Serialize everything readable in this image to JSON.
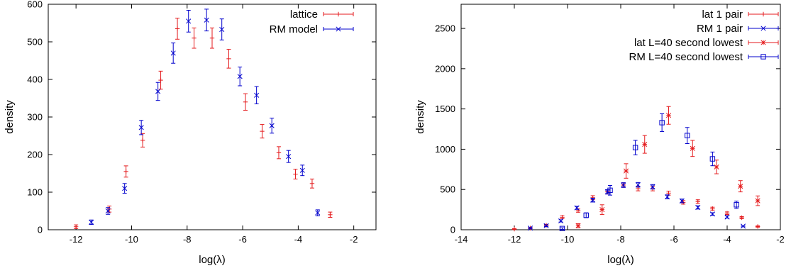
{
  "chart_data": [
    {
      "type": "scatter",
      "xlabel": "log(λ)",
      "ylabel": "density",
      "xlim": [
        -13,
        -1.2
      ],
      "ylim": [
        0,
        600
      ],
      "xticks": [
        -12,
        -10,
        -8,
        -6,
        -4,
        -2
      ],
      "xtick_labels": [
        "-12",
        "-10",
        "-8",
        "-6",
        "-4",
        "-2"
      ],
      "yticks": [
        0,
        100,
        200,
        300,
        400,
        500,
        600
      ],
      "ytick_labels": [
        "0",
        "100",
        "200",
        "300",
        "400",
        "500",
        "600"
      ],
      "grid": false,
      "legend_position": "top-right",
      "series": [
        {
          "name": "lattice",
          "color": "#e41a1c",
          "marker": "plus",
          "x": [
            -12.0,
            -10.8,
            -10.2,
            -9.6,
            -8.95,
            -8.35,
            -7.75,
            -7.1,
            -6.5,
            -5.9,
            -5.3,
            -4.7,
            -4.1,
            -3.5,
            -2.85
          ],
          "y": [
            8,
            55,
            155,
            238,
            398,
            535,
            510,
            510,
            455,
            340,
            262,
            205,
            148,
            123,
            40
          ],
          "err": [
            5,
            8,
            15,
            18,
            24,
            28,
            27,
            27,
            25,
            22,
            18,
            16,
            13,
            12,
            7
          ]
        },
        {
          "name": "RM model",
          "color": "#0000cc",
          "marker": "cross",
          "x": [
            -11.45,
            -10.85,
            -10.25,
            -9.65,
            -9.05,
            -8.5,
            -7.95,
            -7.3,
            -6.75,
            -6.1,
            -5.5,
            -4.95,
            -4.35,
            -3.85,
            -3.3
          ],
          "y": [
            20,
            50,
            110,
            272,
            368,
            470,
            555,
            558,
            533,
            408,
            358,
            277,
            195,
            158,
            45
          ],
          "err": [
            6,
            9,
            13,
            19,
            24,
            27,
            29,
            29,
            28,
            25,
            23,
            20,
            16,
            14,
            8
          ]
        }
      ]
    },
    {
      "type": "scatter",
      "xlabel": "log(λ)",
      "ylabel": "density",
      "xlim": [
        -14,
        -2
      ],
      "ylim": [
        0,
        2800
      ],
      "xticks": [
        -14,
        -12,
        -10,
        -8,
        -6,
        -4,
        -2
      ],
      "xtick_labels": [
        "-14",
        "-12",
        "-10",
        "-8",
        "-6",
        "-4",
        "-2"
      ],
      "yticks": [
        0,
        500,
        1000,
        1500,
        2000,
        2500
      ],
      "ytick_labels": [
        "0",
        "500",
        "1000",
        "1500",
        "2000",
        "2500"
      ],
      "grid": false,
      "legend_position": "top-right",
      "series": [
        {
          "name": "lat 1 pair",
          "color": "#e41a1c",
          "marker": "plus",
          "x": [
            -12.0,
            -11.4,
            -10.8,
            -10.2,
            -9.6,
            -9.05,
            -8.5,
            -7.9,
            -7.35,
            -6.8,
            -6.2,
            -5.65,
            -5.1,
            -4.55,
            -4.0,
            -3.45,
            -2.85
          ],
          "y": [
            8,
            20,
            55,
            155,
            238,
            398,
            470,
            555,
            510,
            510,
            455,
            340,
            350,
            262,
            205,
            150,
            40
          ],
          "err": [
            6,
            8,
            12,
            18,
            20,
            25,
            26,
            28,
            27,
            27,
            25,
            22,
            22,
            18,
            16,
            13,
            8
          ]
        },
        {
          "name": "RM 1 pair",
          "color": "#0000cc",
          "marker": "cross",
          "x": [
            -11.4,
            -10.8,
            -10.25,
            -9.65,
            -9.05,
            -8.5,
            -7.9,
            -7.35,
            -6.8,
            -6.25,
            -5.7,
            -5.1,
            -4.55,
            -4.0,
            -3.4
          ],
          "y": [
            20,
            50,
            110,
            272,
            368,
            470,
            555,
            558,
            533,
            408,
            358,
            277,
            195,
            158,
            45
          ],
          "err": [
            8,
            10,
            14,
            19,
            24,
            27,
            29,
            29,
            28,
            25,
            23,
            20,
            16,
            14,
            8
          ]
        },
        {
          "name": "lat L=40 second lowest",
          "color": "#e41a1c",
          "marker": "star",
          "x": [
            -9.6,
            -8.7,
            -7.8,
            -7.1,
            -6.2,
            -5.3,
            -4.4,
            -3.5,
            -2.85
          ],
          "y": [
            50,
            250,
            730,
            1060,
            1420,
            1010,
            780,
            540,
            360
          ],
          "err": [
            25,
            60,
            90,
            110,
            110,
            100,
            85,
            70,
            60
          ]
        },
        {
          "name": "RM L=40 second lowest",
          "color": "#0000cc",
          "marker": "square",
          "x": [
            -10.2,
            -9.3,
            -8.4,
            -7.45,
            -6.45,
            -5.5,
            -4.55,
            -3.65
          ],
          "y": [
            15,
            180,
            490,
            1020,
            1330,
            1170,
            880,
            310
          ],
          "err": [
            10,
            30,
            60,
            90,
            110,
            100,
            85,
            45
          ]
        }
      ]
    }
  ]
}
